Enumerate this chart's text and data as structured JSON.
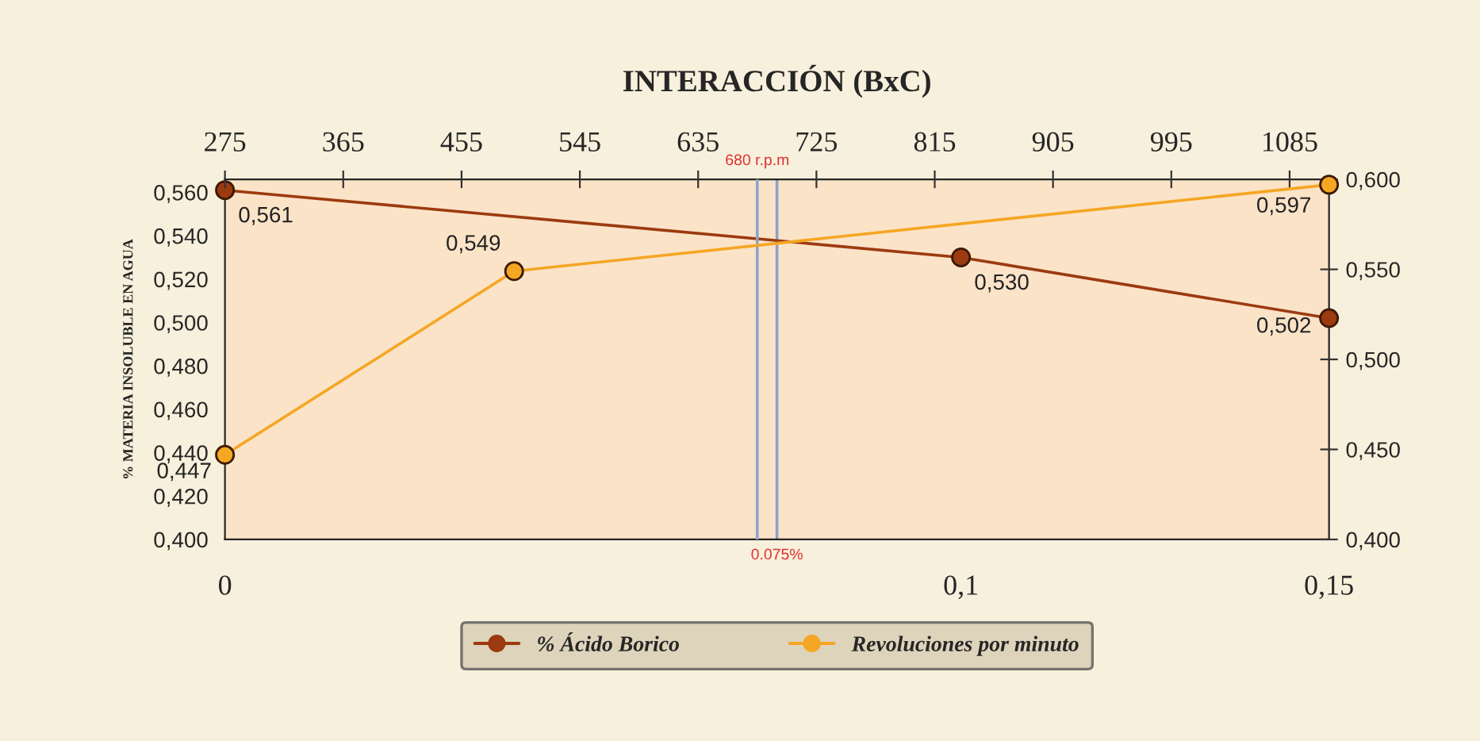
{
  "chart_data": {
    "type": "line",
    "title": "INTERACCIÓN (BxC)",
    "ylabel": "% MATERIA INSOLUBLE EN AGUA",
    "series": [
      {
        "name": "% Ácido Borico",
        "color": "#9c3a10",
        "axis": "x2",
        "x": [
          0,
          0.1,
          0.15
        ],
        "values": [
          0.561,
          0.53,
          0.502
        ],
        "value_labels": [
          "0,561",
          "0,530",
          "0,502"
        ]
      },
      {
        "name": "Revoluciones por minuto",
        "color": "#f5a623",
        "axis": "y2",
        "x": [
          275,
          495,
          1115
        ],
        "values": [
          0.447,
          0.549,
          0.597
        ],
        "value_labels": [
          "0,447",
          "0,549",
          "0,597"
        ]
      }
    ],
    "xlim": [
      275,
      1115
    ],
    "xticks": [
      275,
      365,
      455,
      545,
      635,
      725,
      815,
      905,
      995,
      1085
    ],
    "x2lim": [
      0,
      0.15
    ],
    "x2ticks": [
      {
        "value": 0,
        "label": "0"
      },
      {
        "value": 0.1,
        "label": "0,1"
      },
      {
        "value": 0.15,
        "label": "0,15"
      }
    ],
    "ylim": [
      0.4,
      0.566
    ],
    "yticks": [
      {
        "value": 0.4,
        "label": "0,400"
      },
      {
        "value": 0.42,
        "label": "0,420"
      },
      {
        "value": 0.44,
        "label": "0,440"
      },
      {
        "value": 0.46,
        "label": "0,460"
      },
      {
        "value": 0.48,
        "label": "0,480"
      },
      {
        "value": 0.5,
        "label": "0,500"
      },
      {
        "value": 0.52,
        "label": "0,520"
      },
      {
        "value": 0.54,
        "label": "0,540"
      },
      {
        "value": 0.56,
        "label": "0,560"
      }
    ],
    "y2lim": [
      0.4,
      0.6
    ],
    "y2ticks": [
      {
        "value": 0.4,
        "label": "0,400"
      },
      {
        "value": 0.45,
        "label": "0,450"
      },
      {
        "value": 0.5,
        "label": "0,500"
      },
      {
        "value": 0.55,
        "label": "0,550"
      },
      {
        "value": 0.6,
        "label": "0,600"
      }
    ],
    "ref_lines": [
      {
        "axis": "x",
        "value": 680,
        "label": "680 r.p.m",
        "color": "#8fa3c8"
      },
      {
        "axis": "x2",
        "value": 0.075,
        "label": "0.075%",
        "color": "#8fa3c8"
      }
    ],
    "marker": "circle",
    "grid": false,
    "legend": "bottom"
  }
}
